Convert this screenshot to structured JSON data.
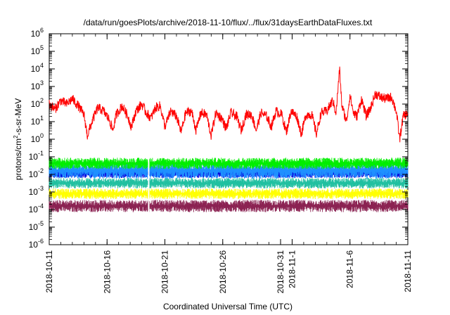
{
  "chart_data": {
    "type": "line",
    "title": "/data/run/goesPlots/archive/2018-11-10/flux/../flux/31daysEarthDataFluxes.txt",
    "xlabel": "Coordinated Universal Time (UTC)",
    "ylabel_base": "protons/cm",
    "ylabel_sup": "2",
    "ylabel_rest": "-s-sr-MeV",
    "yscale": "log",
    "ylim_exp": [
      -6,
      6
    ],
    "y_ticks": [
      {
        "base": "10",
        "exp": "-6",
        "e": -6
      },
      {
        "base": "10",
        "exp": "-5",
        "e": -5
      },
      {
        "base": "10",
        "exp": "-4",
        "e": -4
      },
      {
        "base": "10",
        "exp": "-3",
        "e": -3
      },
      {
        "base": "10",
        "exp": "-2",
        "e": -2
      },
      {
        "base": "10",
        "exp": "-1",
        "e": -1
      },
      {
        "base": "10",
        "exp": "0",
        "e": 0
      },
      {
        "base": "10",
        "exp": "1",
        "e": 1
      },
      {
        "base": "10",
        "exp": "2",
        "e": 2
      },
      {
        "base": "10",
        "exp": "3",
        "e": 3
      },
      {
        "base": "10",
        "exp": "4",
        "e": 4
      },
      {
        "base": "10",
        "exp": "5",
        "e": 5
      },
      {
        "base": "10",
        "exp": "6",
        "e": 6
      }
    ],
    "x_range_days": [
      0,
      31
    ],
    "x_ticks": [
      {
        "label": "2018-10-11",
        "day": 0
      },
      {
        "label": "2018-10-16",
        "day": 5
      },
      {
        "label": "2018-10-21",
        "day": 10
      },
      {
        "label": "2018-10-26",
        "day": 15
      },
      {
        "label": "2018-10-31",
        "day": 20
      },
      {
        "label": "2018-11-1",
        "day": 21
      },
      {
        "label": "2018-11-6",
        "day": 26
      },
      {
        "label": "2018-11-11",
        "day": 31
      }
    ],
    "data_gap_day": 8.6,
    "series": [
      {
        "color": "#ff0000",
        "kind": "line",
        "log_points": [
          [
            0.0,
            2.0
          ],
          [
            0.5,
            1.7
          ],
          [
            1.0,
            2.2
          ],
          [
            1.5,
            2.0
          ],
          [
            2.0,
            2.3
          ],
          [
            2.5,
            1.9
          ],
          [
            3.0,
            1.4
          ],
          [
            3.3,
            0.2
          ],
          [
            3.7,
            1.0
          ],
          [
            4.2,
            1.8
          ],
          [
            4.7,
            1.6
          ],
          [
            5.2,
            1.1
          ],
          [
            5.5,
            0.5
          ],
          [
            5.8,
            1.4
          ],
          [
            6.3,
            1.9
          ],
          [
            6.8,
            1.3
          ],
          [
            7.1,
            0.7
          ],
          [
            7.5,
            1.6
          ],
          [
            8.0,
            2.0
          ],
          [
            8.4,
            1.5
          ],
          [
            8.8,
            1.2
          ],
          [
            9.2,
            1.8
          ],
          [
            9.6,
            1.9
          ],
          [
            10.0,
            0.7
          ],
          [
            10.5,
            1.6
          ],
          [
            11.0,
            1.3
          ],
          [
            11.4,
            0.4
          ],
          [
            11.8,
            1.5
          ],
          [
            12.3,
            1.6
          ],
          [
            12.7,
            0.5
          ],
          [
            13.1,
            1.5
          ],
          [
            13.6,
            1.4
          ],
          [
            14.0,
            0.2
          ],
          [
            14.4,
            1.5
          ],
          [
            14.9,
            1.2
          ],
          [
            15.3,
            0.6
          ],
          [
            15.7,
            1.5
          ],
          [
            16.2,
            1.3
          ],
          [
            16.6,
            0.5
          ],
          [
            17.0,
            1.4
          ],
          [
            17.5,
            1.4
          ],
          [
            17.9,
            0.5
          ],
          [
            18.3,
            1.5
          ],
          [
            18.8,
            1.3
          ],
          [
            19.2,
            0.7
          ],
          [
            19.6,
            1.6
          ],
          [
            20.1,
            1.4
          ],
          [
            20.5,
            0.4
          ],
          [
            20.9,
            1.6
          ],
          [
            21.4,
            1.3
          ],
          [
            21.8,
            0.3
          ],
          [
            22.2,
            1.4
          ],
          [
            22.7,
            1.4
          ],
          [
            23.1,
            0.3
          ],
          [
            23.5,
            1.5
          ],
          [
            24.0,
            1.6
          ],
          [
            24.5,
            2.2
          ],
          [
            24.8,
            1.5
          ],
          [
            25.1,
            4.0
          ],
          [
            25.3,
            1.9
          ],
          [
            25.7,
            1.0
          ],
          [
            26.0,
            2.5
          ],
          [
            26.3,
            1.5
          ],
          [
            26.6,
            1.3
          ],
          [
            27.0,
            2.3
          ],
          [
            27.4,
            1.3
          ],
          [
            27.8,
            1.8
          ],
          [
            28.2,
            2.6
          ],
          [
            28.6,
            2.4
          ],
          [
            29.1,
            2.3
          ],
          [
            29.6,
            2.4
          ],
          [
            30.0,
            1.6
          ],
          [
            30.3,
            0.0
          ],
          [
            30.6,
            1.3
          ],
          [
            31.0,
            1.5
          ]
        ],
        "noise": 0.28
      },
      {
        "color": "#00ee00",
        "kind": "band",
        "log_low": -1.7,
        "log_high": -1.05
      },
      {
        "color": "#1e90ff",
        "kind": "band",
        "log_low": -2.25,
        "log_high": -1.3
      },
      {
        "color": "#0000dd",
        "kind": "band",
        "log_low": -2.2,
        "log_high": -1.7
      },
      {
        "color": "#20c0a0",
        "kind": "band",
        "log_low": -2.8,
        "log_high": -2.2
      },
      {
        "color": "#ffff00",
        "kind": "band",
        "log_low": -3.4,
        "log_high": -2.8
      },
      {
        "color": "#8b2252",
        "kind": "band",
        "log_low": -4.15,
        "log_high": -3.45
      }
    ]
  }
}
